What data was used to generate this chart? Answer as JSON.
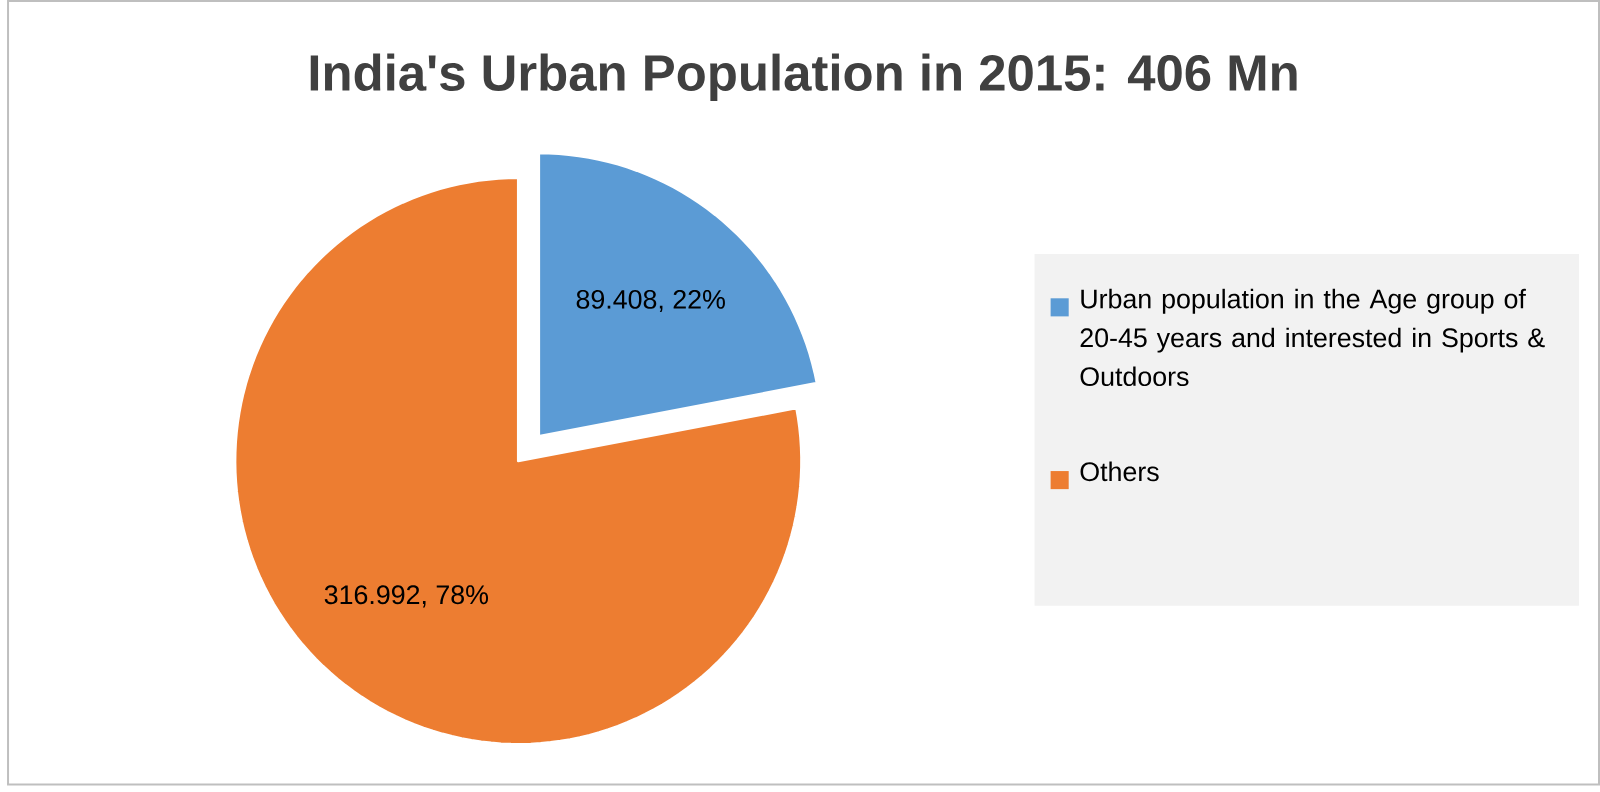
{
  "chart_data": {
    "type": "pie",
    "title": "India's Urban Population in 2015: 406 Mn",
    "categories": [
      "Urban population in the Age group of 20-45 years and interested in Sports & Outdoors",
      "Others"
    ],
    "values": [
      89.408,
      316.992
    ],
    "colors": [
      "#5b9bd5",
      "#ed7d31"
    ],
    "value_labels": [
      "89.408, 22%",
      "316.992, 78%"
    ],
    "legend": "right"
  }
}
